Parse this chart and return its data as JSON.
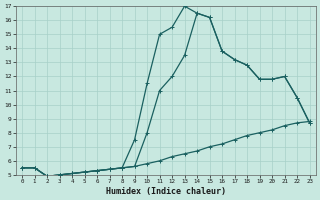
{
  "xlabel": "Humidex (Indice chaleur)",
  "background_color": "#c8e8e0",
  "grid_color": "#a8d0c8",
  "line_color": "#1a6060",
  "xlim": [
    -0.5,
    23.5
  ],
  "ylim": [
    5,
    17
  ],
  "xticks": [
    0,
    1,
    2,
    3,
    4,
    5,
    6,
    7,
    8,
    9,
    10,
    11,
    12,
    13,
    14,
    15,
    16,
    17,
    18,
    19,
    20,
    21,
    22,
    23
  ],
  "yticks": [
    5,
    6,
    7,
    8,
    9,
    10,
    11,
    12,
    13,
    14,
    15,
    16,
    17
  ],
  "line1_x": [
    0,
    1,
    2,
    3,
    4,
    5,
    6,
    7,
    8,
    9,
    10,
    11,
    12,
    13,
    14,
    15,
    16,
    17,
    18,
    19,
    20,
    21,
    22,
    23
  ],
  "line1_y": [
    5.5,
    5.5,
    4.9,
    5.0,
    5.1,
    5.2,
    5.3,
    5.4,
    5.5,
    5.6,
    5.8,
    6.0,
    6.3,
    6.5,
    6.7,
    7.0,
    7.2,
    7.5,
    7.8,
    8.0,
    8.2,
    8.5,
    8.7,
    8.8
  ],
  "line2_x": [
    0,
    1,
    2,
    3,
    4,
    5,
    6,
    7,
    8,
    9,
    10,
    11,
    12,
    13,
    14,
    15,
    16,
    17,
    18,
    19,
    20,
    21,
    22,
    23
  ],
  "line2_y": [
    5.5,
    5.5,
    4.9,
    5.0,
    5.1,
    5.2,
    5.3,
    5.4,
    5.5,
    5.6,
    8.0,
    11.0,
    12.0,
    13.5,
    16.5,
    16.2,
    13.8,
    13.2,
    12.8,
    11.8,
    11.8,
    12.0,
    10.5,
    8.7
  ],
  "line3_x": [
    0,
    1,
    2,
    3,
    4,
    5,
    6,
    7,
    8,
    9,
    10,
    11,
    12,
    13,
    14,
    15,
    16,
    17,
    18,
    19,
    20,
    21,
    22,
    23
  ],
  "line3_y": [
    5.5,
    5.5,
    4.9,
    5.0,
    5.1,
    5.2,
    5.3,
    5.4,
    5.5,
    7.5,
    11.5,
    15.0,
    15.5,
    17.0,
    16.5,
    16.2,
    13.8,
    13.2,
    12.8,
    11.8,
    11.8,
    12.0,
    10.5,
    8.7
  ]
}
